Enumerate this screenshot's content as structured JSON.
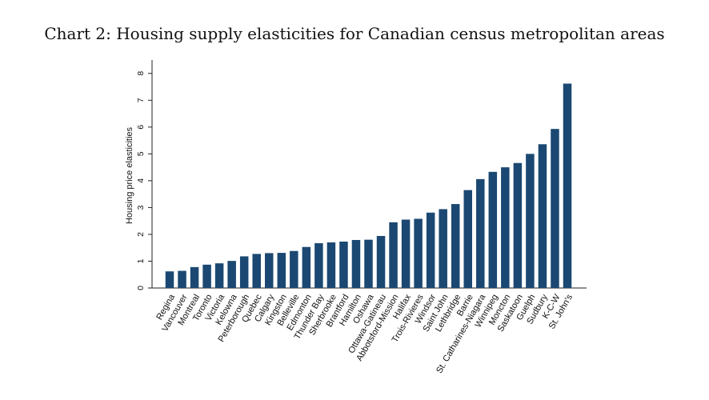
{
  "chart_data": {
    "type": "bar",
    "title": "Chart 2: Housing supply elasticities for Canadian census metropolitan areas",
    "xlabel": "",
    "ylabel": "Housing price elasticities",
    "ylim": [
      0,
      8.5
    ],
    "yticks": [
      0,
      1,
      2,
      3,
      4,
      5,
      6,
      7,
      8
    ],
    "grid": false,
    "bar_color": "#1b4872",
    "categories": [
      "Regina",
      "Vancouver",
      "Montreal",
      "Toronto",
      "Victoria",
      "Kelowna",
      "Peterborough",
      "Quebec",
      "Calgary",
      "Kingston",
      "Belleville",
      "Edmonton",
      "Thunder Bay",
      "Sherbrooke",
      "Brantford",
      "Hamilton",
      "Oshawa",
      "Ottawa-Gatineau",
      "Abbotsford-Mission",
      "Halifax",
      "Trois-Rivieres",
      "Windsor",
      "Saint John",
      "Lethbridge",
      "Barrie",
      "St. Catharines-Niagara",
      "Winnipeg",
      "Moncton",
      "Saskatoon",
      "Guelph",
      "Sudbury",
      "K-C-W",
      "St. John's"
    ],
    "values": [
      0.62,
      0.64,
      0.78,
      0.87,
      0.92,
      1.01,
      1.18,
      1.27,
      1.3,
      1.31,
      1.38,
      1.53,
      1.67,
      1.7,
      1.73,
      1.79,
      1.8,
      1.94,
      2.45,
      2.55,
      2.58,
      2.81,
      2.94,
      3.13,
      3.65,
      4.06,
      4.33,
      4.5,
      4.66,
      5.0,
      5.36,
      5.93,
      7.62
    ]
  }
}
